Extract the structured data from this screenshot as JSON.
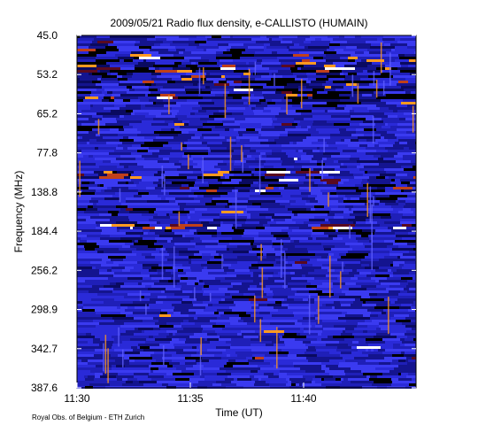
{
  "chart_data": {
    "type": "spectrogram",
    "title": "2009/05/21  Radio flux density, e-CALLISTO (HUMAIN)",
    "xlabel": "Time (UT)",
    "ylabel": "Frequency (MHz)",
    "credit": "Royal Obs. of Belgium - ETH Zurich",
    "xticks": [
      "11:30",
      "11:35",
      "11:40"
    ],
    "ylim": [
      45,
      387.6
    ],
    "yticks": [
      {
        "value": 45,
        "label": "45.0"
      },
      53.2,
      65.2,
      77.8,
      138.8,
      184.4,
      256.2,
      298.9,
      342.7,
      387.6
    ]
  }
}
